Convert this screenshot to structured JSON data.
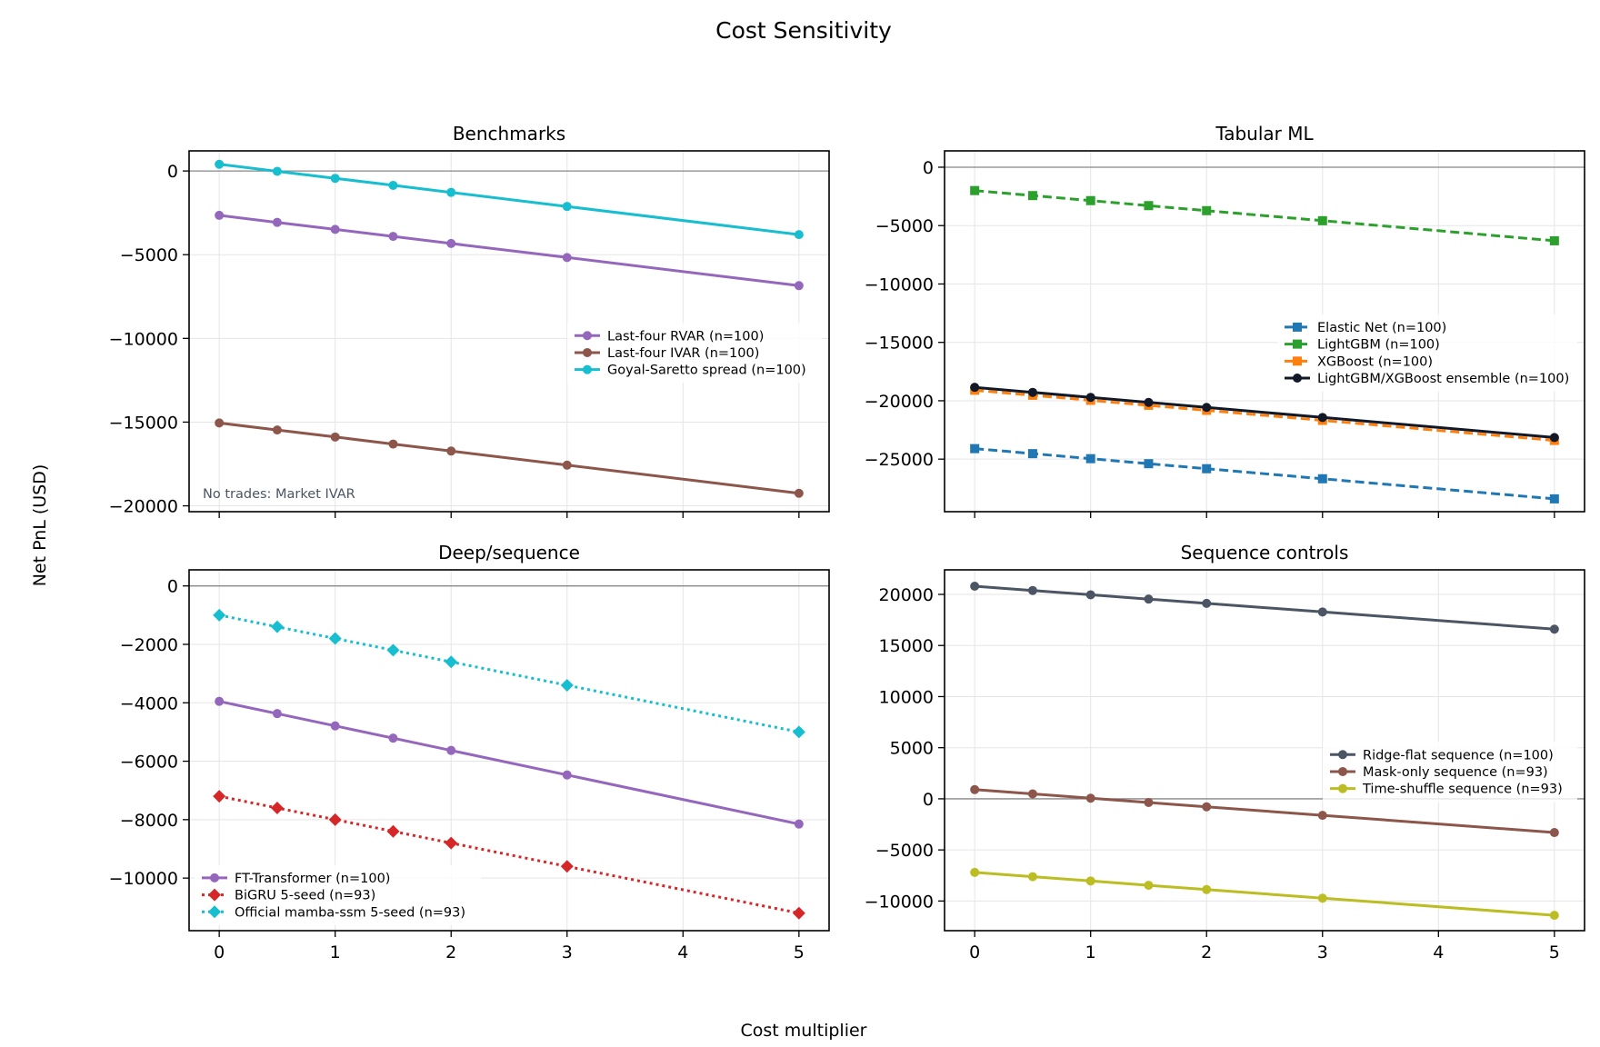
{
  "figure": {
    "title": "Cost Sensitivity",
    "xlabel": "Cost multiplier",
    "ylabel": "Net PnL (USD)"
  },
  "colors": {
    "purple": "#9467bd",
    "brown": "#8c564b",
    "cyan": "#17becf",
    "blue": "#1f77b4",
    "green": "#2ca02c",
    "orange": "#ff7f0e",
    "black": "#111827",
    "red": "#d62728",
    "slate": "#4b5563",
    "olive": "#bcbd22",
    "zero_line": "#888888",
    "grid": "#e5e5e5",
    "note": "#4b5563"
  },
  "chart_data": [
    {
      "type": "line",
      "title": "Benchmarks",
      "x": [
        0,
        0.5,
        1,
        1.5,
        2,
        3,
        5
      ],
      "xlim": [
        -0.26,
        5.26
      ],
      "ylim": [
        -20350,
        1200
      ],
      "yticks": [
        0,
        -5000,
        -10000,
        -15000,
        -20000
      ],
      "xticks": [
        0,
        1,
        2,
        3,
        4,
        5
      ],
      "show_xtick_labels": false,
      "grid": true,
      "legend": "center-right",
      "note": "No trades: Market IVAR",
      "series": [
        {
          "name": "Last-four RVAR (n=100)",
          "color": "#9467bd",
          "marker": "circle",
          "dash": "solid",
          "values": [
            -2650,
            -3070,
            -3490,
            -3910,
            -4330,
            -5170,
            -6850
          ]
        },
        {
          "name": "Last-four IVAR (n=100)",
          "color": "#8c564b",
          "marker": "circle",
          "dash": "solid",
          "values": [
            -15050,
            -15470,
            -15890,
            -16310,
            -16730,
            -17570,
            -19250
          ]
        },
        {
          "name": "Goyal-Saretto spread (n=100)",
          "color": "#17becf",
          "marker": "circle",
          "dash": "solid",
          "values": [
            400,
            -20,
            -440,
            -860,
            -1280,
            -2120,
            -3800
          ]
        }
      ]
    },
    {
      "type": "line",
      "title": "Tabular ML",
      "x": [
        0,
        0.5,
        1,
        1.5,
        2,
        3,
        5
      ],
      "xlim": [
        -0.26,
        5.26
      ],
      "ylim": [
        -29500,
        1400
      ],
      "yticks": [
        0,
        -5000,
        -10000,
        -15000,
        -20000,
        -25000
      ],
      "xticks": [
        0,
        1,
        2,
        3,
        4,
        5
      ],
      "show_xtick_labels": false,
      "grid": true,
      "legend": "center-right",
      "series": [
        {
          "name": "Elastic Net (n=100)",
          "color": "#1f77b4",
          "marker": "square",
          "dash": "dashed",
          "values": [
            -24100,
            -24530,
            -24960,
            -25390,
            -25820,
            -26680,
            -28400
          ]
        },
        {
          "name": "LightGBM (n=100)",
          "color": "#2ca02c",
          "marker": "square",
          "dash": "dashed",
          "values": [
            -2000,
            -2430,
            -2860,
            -3290,
            -3720,
            -4580,
            -6300
          ]
        },
        {
          "name": "XGBoost (n=100)",
          "color": "#ff7f0e",
          "marker": "square",
          "dash": "dashed",
          "values": [
            -19100,
            -19530,
            -19960,
            -20390,
            -20820,
            -21680,
            -23400
          ]
        },
        {
          "name": "LightGBM/XGBoost ensemble (n=100)",
          "color": "#111827",
          "marker": "circle",
          "dash": "solid",
          "values": [
            -18850,
            -19280,
            -19710,
            -20140,
            -20570,
            -21430,
            -23150
          ]
        }
      ]
    },
    {
      "type": "line",
      "title": "Deep/sequence",
      "x": [
        0,
        0.5,
        1,
        1.5,
        2,
        3,
        5
      ],
      "xlim": [
        -0.26,
        5.26
      ],
      "ylim": [
        -11800,
        550
      ],
      "yticks": [
        0,
        -2000,
        -4000,
        -6000,
        -8000,
        -10000
      ],
      "xticks": [
        0,
        1,
        2,
        3,
        4,
        5
      ],
      "show_xtick_labels": true,
      "grid": true,
      "legend": "lower-left",
      "series": [
        {
          "name": "FT-Transformer (n=100)",
          "color": "#9467bd",
          "marker": "circle",
          "dash": "solid",
          "values": [
            -3950,
            -4370,
            -4790,
            -5210,
            -5630,
            -6470,
            -8150
          ]
        },
        {
          "name": "BiGRU 5-seed (n=93)",
          "color": "#d62728",
          "marker": "diamond",
          "dash": "dotted",
          "values": [
            -7200,
            -7600,
            -8000,
            -8400,
            -8800,
            -9600,
            -11200
          ]
        },
        {
          "name": "Official mamba-ssm 5-seed (n=93)",
          "color": "#17becf",
          "marker": "diamond",
          "dash": "dotted",
          "values": [
            -1000,
            -1400,
            -1800,
            -2200,
            -2600,
            -3400,
            -5000
          ]
        }
      ]
    },
    {
      "type": "line",
      "title": "Sequence controls",
      "x": [
        0,
        0.5,
        1,
        1.5,
        2,
        3,
        5
      ],
      "xlim": [
        -0.26,
        5.26
      ],
      "ylim": [
        -12900,
        22400
      ],
      "yticks": [
        20000,
        15000,
        10000,
        5000,
        0,
        -5000,
        -10000
      ],
      "xticks": [
        0,
        1,
        2,
        3,
        4,
        5
      ],
      "show_xtick_labels": true,
      "grid": true,
      "legend": "center-right",
      "series": [
        {
          "name": "Ridge-flat sequence (n=100)",
          "color": "#4b5563",
          "marker": "circle",
          "dash": "solid",
          "values": [
            20800,
            20380,
            19960,
            19540,
            19120,
            18280,
            16600
          ]
        },
        {
          "name": "Mask-only sequence (n=93)",
          "color": "#8c564b",
          "marker": "circle",
          "dash": "solid",
          "values": [
            900,
            480,
            60,
            -360,
            -780,
            -1620,
            -3300
          ]
        },
        {
          "name": "Time-shuffle sequence (n=93)",
          "color": "#bcbd22",
          "marker": "circle",
          "dash": "solid",
          "values": [
            -7200,
            -7620,
            -8040,
            -8460,
            -8880,
            -9720,
            -11400
          ]
        }
      ]
    }
  ]
}
